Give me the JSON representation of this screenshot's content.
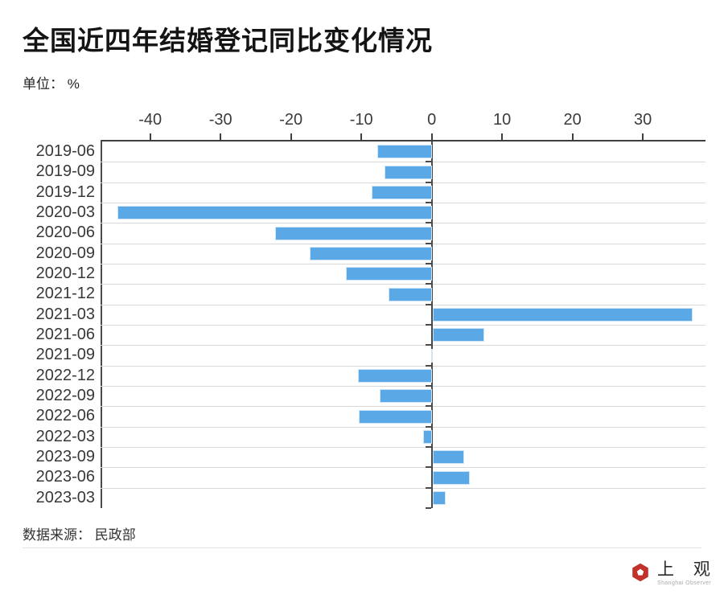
{
  "header": {
    "title": "全国近四年结婚登记同比变化情况",
    "unit_label": "单位： %"
  },
  "chart_data": {
    "type": "bar",
    "orientation": "horizontal",
    "title": "全国近四年结婚登记同比变化情况",
    "unit": "%",
    "categories": [
      "2019-06",
      "2019-09",
      "2019-12",
      "2020-03",
      "2020-06",
      "2020-09",
      "2020-12",
      "2021-12",
      "2021-03",
      "2021-06",
      "2021-09",
      "2022-12",
      "2022-09",
      "2022-06",
      "2022-03",
      "2023-09",
      "2023-06",
      "2023-03"
    ],
    "values": [
      -7.7,
      -6.7,
      -8.5,
      -44.7,
      -22.3,
      -17.3,
      -12.2,
      -6.1,
      37.0,
      7.4,
      -0.1,
      -10.5,
      -7.4,
      -10.4,
      -1.2,
      4.5,
      5.3,
      1.9
    ],
    "xticks": [
      -40,
      -30,
      -20,
      -10,
      0,
      10,
      20,
      30
    ],
    "xlim": [
      -47.05,
      38.9
    ],
    "grid": true,
    "legend": null,
    "colors": {
      "bar": "#5aa9e6",
      "axis": "#4a4a4a",
      "gridline": "#d8d8d8"
    }
  },
  "footer": {
    "source": "数据来源： 民政部"
  },
  "logo": {
    "cn": "上 观",
    "en": "Shanghai Observer",
    "accent_color": "#c0322b"
  }
}
